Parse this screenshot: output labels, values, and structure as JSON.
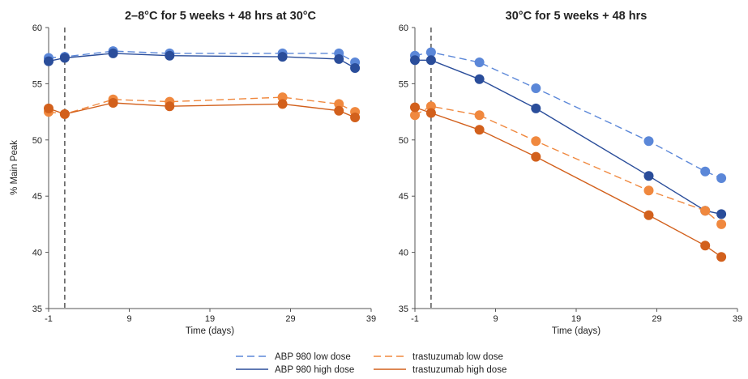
{
  "chart_data": [
    {
      "type": "line",
      "title": "2–8°C for 5 weeks + 48 hrs at 30°C",
      "xlabel": "Time (days)",
      "ylabel": "% Main Peak",
      "xlim": [
        -1,
        39
      ],
      "ylim": [
        35,
        60
      ],
      "xticks": [
        "-1",
        "9",
        "19",
        "29",
        "39"
      ],
      "yticks": [
        "35",
        "40",
        "45",
        "50",
        "55",
        "60"
      ],
      "grid": false,
      "reference_line_x": 1,
      "series": [
        {
          "name": "ABP 980  low dose",
          "color": "#5b87d8",
          "dash": true,
          "x": [
            -1,
            1,
            7,
            14,
            28,
            35,
            37
          ],
          "y": [
            57.3,
            57.4,
            57.9,
            57.7,
            57.7,
            57.7,
            56.9
          ]
        },
        {
          "name": "ABP 980  high dose",
          "color": "#2a4d9a",
          "dash": false,
          "x": [
            -1,
            1,
            7,
            14,
            28,
            35,
            37
          ],
          "y": [
            57.0,
            57.3,
            57.7,
            57.5,
            57.4,
            57.2,
            56.4
          ]
        },
        {
          "name": "trastuzumab low dose",
          "color": "#f0883e",
          "dash": true,
          "x": [
            -1,
            1,
            7,
            14,
            28,
            35,
            37
          ],
          "y": [
            52.5,
            52.3,
            53.6,
            53.4,
            53.8,
            53.2,
            52.5
          ]
        },
        {
          "name": "trastuzumab high dose",
          "color": "#d2601c",
          "dash": false,
          "x": [
            -1,
            1,
            7,
            14,
            28,
            35,
            37
          ],
          "y": [
            52.8,
            52.3,
            53.3,
            53.0,
            53.2,
            52.6,
            52.0
          ]
        }
      ]
    },
    {
      "type": "line",
      "title": "30°C for 5 weeks + 48 hrs",
      "xlabel": "Time (days)",
      "ylabel": "",
      "xlim": [
        -1,
        39
      ],
      "ylim": [
        35,
        60
      ],
      "xticks": [
        "-1",
        "9",
        "19",
        "29",
        "39"
      ],
      "yticks": [
        "35",
        "40",
        "45",
        "50",
        "55",
        "60"
      ],
      "grid": false,
      "reference_line_x": 1,
      "series": [
        {
          "name": "ABP 980  low dose",
          "color": "#5b87d8",
          "dash": true,
          "x": [
            -1,
            1,
            7,
            14,
            28,
            35,
            37
          ],
          "y": [
            57.5,
            57.8,
            56.9,
            54.6,
            49.9,
            47.2,
            46.6
          ]
        },
        {
          "name": "ABP 980  high dose",
          "color": "#2a4d9a",
          "dash": false,
          "x": [
            -1,
            1,
            7,
            14,
            28,
            35,
            37
          ],
          "y": [
            57.1,
            57.1,
            55.4,
            52.8,
            46.8,
            43.7,
            43.4
          ]
        },
        {
          "name": "trastuzumab low dose",
          "color": "#f0883e",
          "dash": true,
          "x": [
            -1,
            1,
            7,
            14,
            28,
            35,
            37
          ],
          "y": [
            52.2,
            53.0,
            52.2,
            49.9,
            45.5,
            43.7,
            42.5
          ]
        },
        {
          "name": "trastuzumab high dose",
          "color": "#d2601c",
          "dash": false,
          "x": [
            -1,
            1,
            7,
            14,
            28,
            35,
            37
          ],
          "y": [
            52.9,
            52.4,
            50.9,
            48.5,
            43.3,
            40.6,
            39.6
          ]
        }
      ]
    }
  ],
  "legend": {
    "placement": "bottom-center",
    "items": [
      {
        "label": "ABP 980  low dose",
        "color": "#5b87d8",
        "dash": true
      },
      {
        "label": "ABP 980  high dose",
        "color": "#2a4d9a",
        "dash": false
      },
      {
        "label": "trastuzumab low dose",
        "color": "#f0883e",
        "dash": true
      },
      {
        "label": "trastuzumab high dose",
        "color": "#d2601c",
        "dash": false
      }
    ]
  }
}
